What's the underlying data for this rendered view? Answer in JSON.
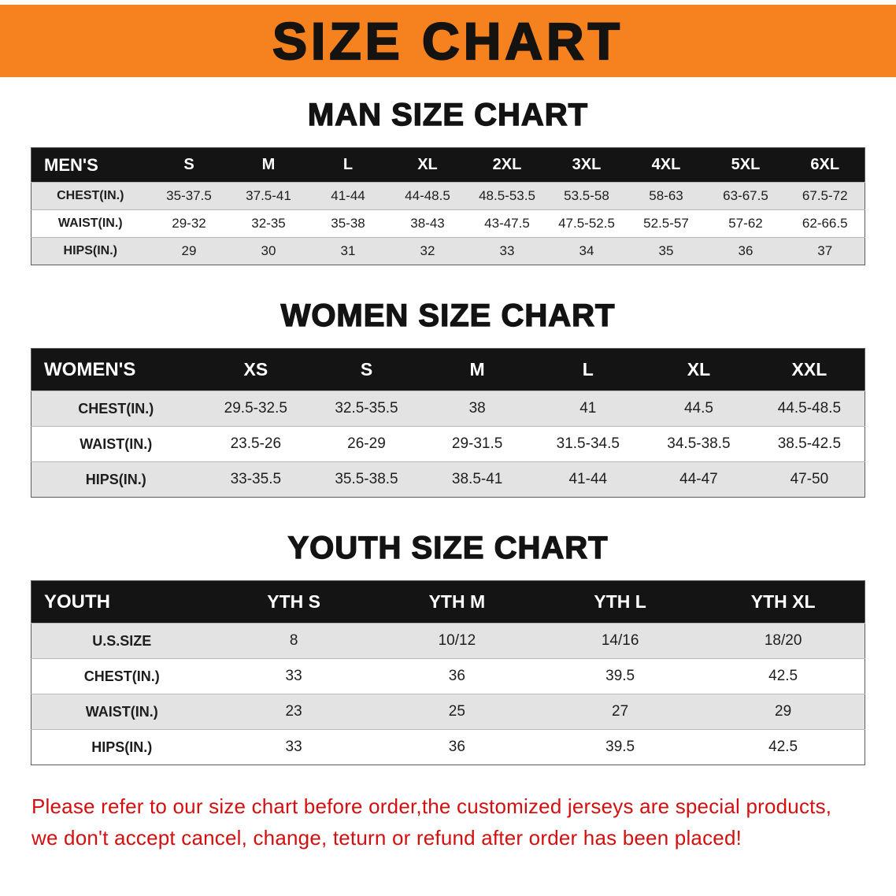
{
  "banner": {
    "title": "SIZE CHART",
    "bg_color": "#f5821f",
    "text_color": "#151310"
  },
  "sections": [
    {
      "title": "MAN SIZE CHART",
      "header": [
        "MEN'S",
        "S",
        "M",
        "L",
        "XL",
        "2XL",
        "3XL",
        "4XL",
        "5XL",
        "6XL"
      ],
      "rows": [
        [
          "CHEST(IN.)",
          "35-37.5",
          "37.5-41",
          "41-44",
          "44-48.5",
          "48.5-53.5",
          "53.5-58",
          "58-63",
          "63-67.5",
          "67.5-72"
        ],
        [
          "WAIST(IN.)",
          "29-32",
          "32-35",
          "35-38",
          "38-43",
          "43-47.5",
          "47.5-52.5",
          "52.5-57",
          "57-62",
          "62-66.5"
        ],
        [
          "HIPS(IN.)",
          "29",
          "30",
          "31",
          "32",
          "33",
          "34",
          "35",
          "36",
          "37"
        ]
      ]
    },
    {
      "title": "WOMEN SIZE CHART",
      "header": [
        "WOMEN'S",
        "XS",
        "S",
        "M",
        "L",
        "XL",
        "XXL"
      ],
      "rows": [
        [
          "CHEST(IN.)",
          "29.5-32.5",
          "32.5-35.5",
          "38",
          "41",
          "44.5",
          "44.5-48.5"
        ],
        [
          "WAIST(IN.)",
          "23.5-26",
          "26-29",
          "29-31.5",
          "31.5-34.5",
          "34.5-38.5",
          "38.5-42.5"
        ],
        [
          "HIPS(IN.)",
          "33-35.5",
          "35.5-38.5",
          "38.5-41",
          "41-44",
          "44-47",
          "47-50"
        ]
      ]
    },
    {
      "title": "YOUTH SIZE CHART",
      "header": [
        "YOUTH",
        "YTH S",
        "YTH M",
        "YTH L",
        "YTH XL"
      ],
      "rows": [
        [
          "U.S.SIZE",
          "8",
          "10/12",
          "14/16",
          "18/20"
        ],
        [
          "CHEST(IN.)",
          "33",
          "36",
          "39.5",
          "42.5"
        ],
        [
          "WAIST(IN.)",
          "23",
          "25",
          "27",
          "29"
        ],
        [
          "HIPS(IN.)",
          "33",
          "36",
          "39.5",
          "42.5"
        ]
      ]
    }
  ],
  "disclaimer": {
    "color": "#d40f0f",
    "lines": [
      "Please refer to our size chart before order,the customized jerseys are special products,",
      "we don't accept cancel, change, teturn or refund after order has been placed!"
    ]
  }
}
